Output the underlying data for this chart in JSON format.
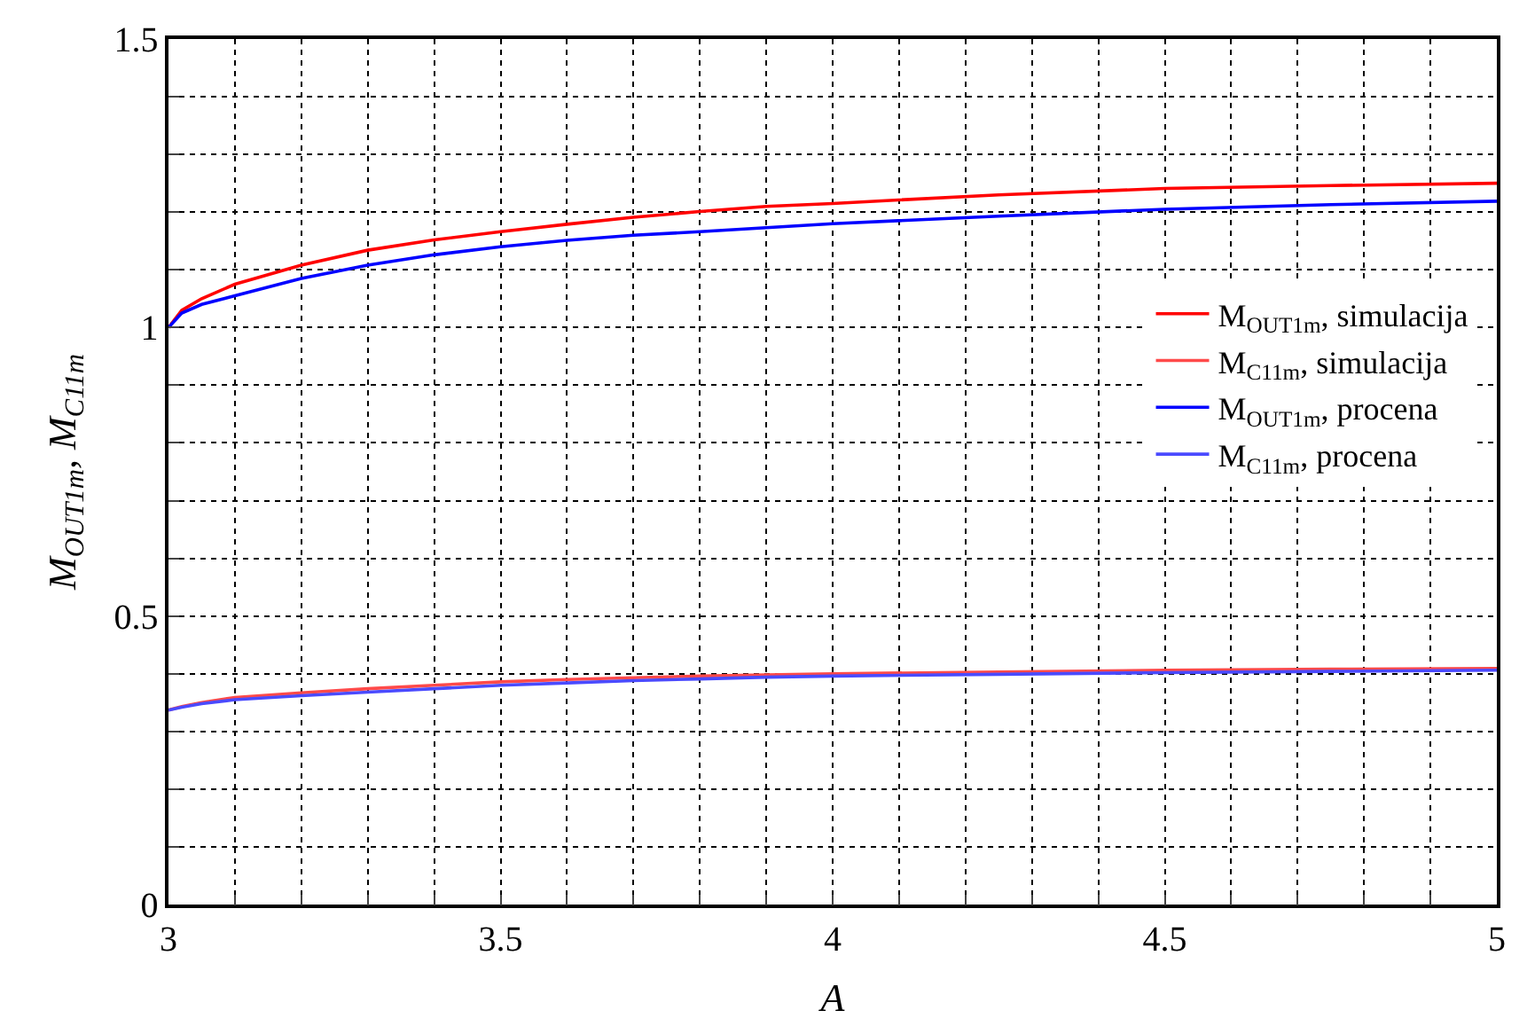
{
  "chart_data": {
    "type": "line",
    "xlabel": "A",
    "ylabel": "M$_{OUT1m}$, M$_{C11m}$",
    "x": [
      3,
      3.02,
      3.05,
      3.1,
      3.2,
      3.3,
      3.4,
      3.5,
      3.6,
      3.7,
      3.8,
      3.9,
      4,
      4.25,
      4.5,
      4.75,
      5
    ],
    "series": [
      {
        "name": "M$_{OUT1m}$, simulacija",
        "color": "#ff0000",
        "values": [
          1.0,
          1.03,
          1.05,
          1.075,
          1.108,
          1.134,
          1.152,
          1.166,
          1.179,
          1.191,
          1.201,
          1.21,
          1.215,
          1.23,
          1.241,
          1.246,
          1.25
        ]
      },
      {
        "name": "M$_{C11m}$, simulacija",
        "color": "#ff4a4a",
        "values": [
          0.337,
          0.343,
          0.35,
          0.359,
          0.367,
          0.374,
          0.38,
          0.386,
          0.39,
          0.393,
          0.396,
          0.398,
          0.4,
          0.403,
          0.406,
          0.408,
          0.409
        ]
      },
      {
        "name": "M$_{OUT1m}$, procena",
        "color": "#0000ff",
        "values": [
          1.0,
          1.025,
          1.04,
          1.055,
          1.085,
          1.108,
          1.126,
          1.14,
          1.151,
          1.16,
          1.166,
          1.173,
          1.18,
          1.193,
          1.205,
          1.213,
          1.219
        ]
      },
      {
        "name": "M$_{C11m}$, procena",
        "color": "#4a4aff",
        "values": [
          0.337,
          0.342,
          0.348,
          0.355,
          0.362,
          0.368,
          0.374,
          0.38,
          0.384,
          0.388,
          0.391,
          0.394,
          0.396,
          0.399,
          0.402,
          0.404,
          0.406
        ]
      }
    ],
    "xlim": [
      3,
      5
    ],
    "ylim": [
      0,
      1.5
    ],
    "xticks": [
      3,
      {
        "value": 3.1,
        "label": null
      },
      {
        "value": 3.2,
        "label": null
      },
      {
        "value": 3.3,
        "label": null
      },
      {
        "value": 3.4,
        "label": null
      },
      3.5,
      {
        "value": 3.6,
        "label": null
      },
      {
        "value": 3.7,
        "label": null
      },
      {
        "value": 3.8,
        "label": null
      },
      {
        "value": 3.9,
        "label": null
      },
      4,
      {
        "value": 4.1,
        "label": null
      },
      {
        "value": 4.2,
        "label": null
      },
      {
        "value": 4.3,
        "label": null
      },
      {
        "value": 4.4,
        "label": null
      },
      4.5,
      {
        "value": 4.6,
        "label": null
      },
      {
        "value": 4.7,
        "label": null
      },
      {
        "value": 4.8,
        "label": null
      },
      {
        "value": 4.9,
        "label": null
      },
      5
    ],
    "yticks": [
      0,
      {
        "value": 0.1,
        "label": null
      },
      {
        "value": 0.2,
        "label": null
      },
      {
        "value": 0.3,
        "label": null
      },
      {
        "value": 0.4,
        "label": null
      },
      0.5,
      {
        "value": 0.6,
        "label": null
      },
      {
        "value": 0.7,
        "label": null
      },
      {
        "value": 0.8,
        "label": null
      },
      {
        "value": 0.9,
        "label": null
      },
      1,
      {
        "value": 1.1,
        "label": null
      },
      {
        "value": 1.2,
        "label": null
      },
      {
        "value": 1.3,
        "label": null
      },
      {
        "value": 1.4,
        "label": null
      },
      1.5
    ],
    "grid": true,
    "legend": "right",
    "line_style": "solid",
    "marker": "none"
  }
}
